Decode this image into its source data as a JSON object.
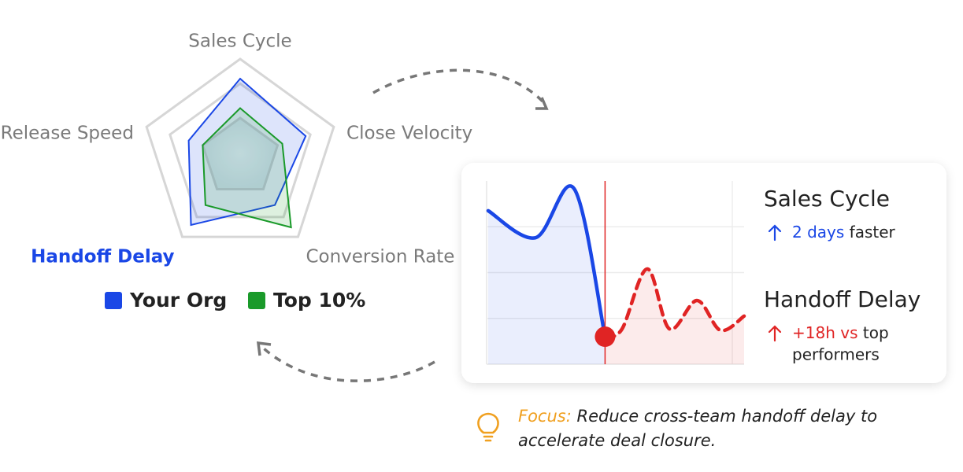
{
  "chart_data": [
    {
      "type": "radar",
      "categories": [
        "Sales Cycle",
        "Close Velocity",
        "Conversion Rate",
        "Handoff Delay",
        "Release Speed"
      ],
      "rlim": [
        0,
        100
      ],
      "rticks": [
        40,
        75,
        100
      ],
      "series": [
        {
          "name": "Your Org",
          "color": "#1a47e6",
          "values": [
            80,
            70,
            60,
            85,
            55
          ]
        },
        {
          "name": "Top 10%",
          "color": "#1a9a2a",
          "values": [
            50,
            45,
            88,
            60,
            40
          ]
        }
      ]
    },
    {
      "type": "line",
      "xlim": [
        0,
        10
      ],
      "ylim": [
        0,
        4
      ],
      "yticks": [
        1,
        2,
        3
      ],
      "grid": true,
      "series": [
        {
          "color": "#1a47e6",
          "x": [
            0.06,
            1.9,
            3.4,
            4.6
          ],
          "values": [
            3.35,
            2.76,
            3.83,
            0.6
          ]
        },
        {
          "color": "#e02424",
          "dashed": true,
          "x": [
            4.6,
            5.26,
            6.24,
            7.1,
            8.17,
            9.08,
            10
          ],
          "values": [
            0.6,
            0.77,
            2.08,
            0.77,
            1.39,
            0.74,
            1.05
          ]
        }
      ],
      "marker": {
        "x": 4.6,
        "value": 0.6,
        "color": "#e02424"
      }
    }
  ],
  "stats": [
    {
      "title": "Sales Cycle",
      "highlight": "2 days",
      "rest": "faster",
      "direction_color": "#1a47e6"
    },
    {
      "title": "Handoff Delay",
      "highlight": "+18h vs",
      "rest": "top",
      "rest2": "performers",
      "direction_color": "#e02424"
    }
  ],
  "focus": {
    "label": "Focus:",
    "line1": "Reduce cross-team handoff delay to",
    "line2": "accelerate deal closure."
  }
}
